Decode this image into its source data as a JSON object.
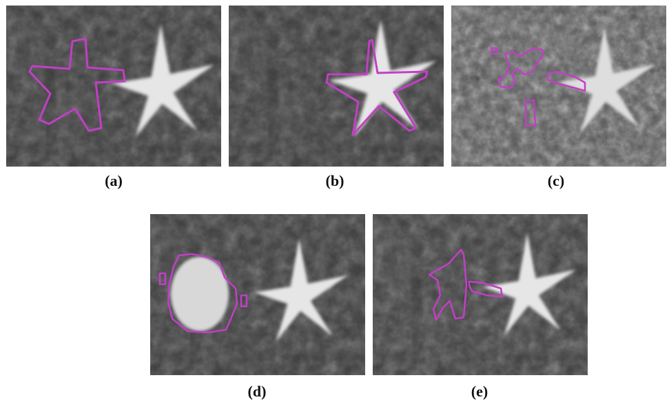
{
  "figure": {
    "panels": [
      {
        "id": "a",
        "caption": "(a)"
      },
      {
        "id": "b",
        "caption": "(b)"
      },
      {
        "id": "c",
        "caption": "(c)"
      },
      {
        "id": "d",
        "caption": "(d)"
      },
      {
        "id": "e",
        "caption": "(e)"
      }
    ],
    "contour_color": "#c23fc6",
    "object_color": "#e6e6e6"
  }
}
